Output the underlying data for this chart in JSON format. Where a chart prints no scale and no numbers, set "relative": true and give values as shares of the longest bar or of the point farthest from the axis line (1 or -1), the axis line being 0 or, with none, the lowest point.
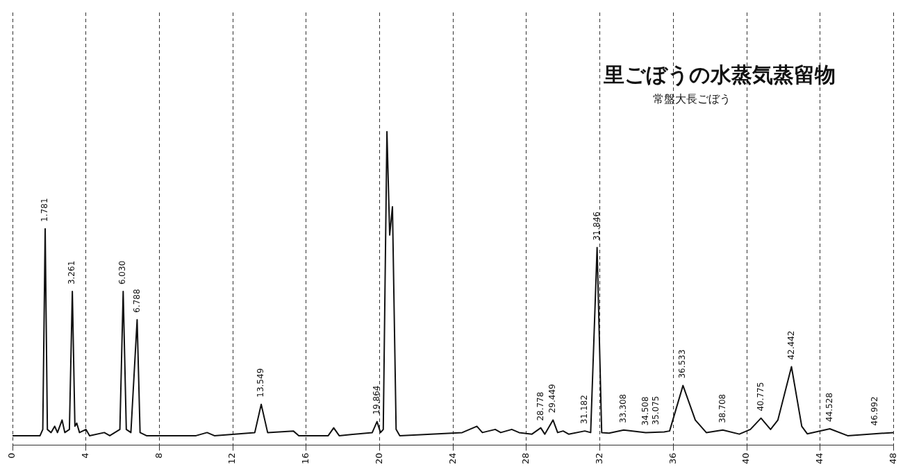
{
  "chart_data": {
    "type": "line",
    "title": "里ごぼうの水蒸気蒸留物",
    "subtitle": "常盤大長ごぼう",
    "relative": true,
    "grid": "x",
    "legend": false,
    "marker": "none",
    "line_style": "solid",
    "xlim": [
      0,
      48
    ],
    "xticks": [
      0,
      4,
      8,
      12,
      16,
      20,
      24,
      28,
      32,
      36,
      40,
      44,
      48
    ],
    "series": [
      {
        "color": "#111111",
        "x": [
          0,
          1.5,
          1.65,
          1.78,
          1.9,
          2.1,
          2.3,
          2.45,
          2.7,
          2.85,
          3.1,
          3.26,
          3.4,
          3.5,
          3.65,
          4.0,
          4.2,
          5.0,
          5.3,
          5.85,
          6.03,
          6.2,
          6.45,
          6.79,
          6.95,
          7.3,
          10,
          10.6,
          11,
          13.2,
          13.55,
          13.9,
          15.3,
          15.6,
          17.2,
          17.5,
          17.8,
          19.6,
          19.86,
          20.05,
          20.2,
          20.4,
          20.55,
          20.7,
          20.9,
          21.1,
          24.5,
          25.3,
          25.6,
          26.3,
          26.6,
          27.2,
          27.6,
          28.3,
          28.78,
          29.0,
          29.45,
          29.7,
          30.0,
          30.3,
          31.18,
          31.5,
          31.85,
          32.1,
          32.5,
          33.3,
          34.5,
          35.5,
          35.8,
          36.53,
          37.2,
          37.8,
          38.7,
          39.6,
          40.2,
          40.78,
          41.3,
          41.7,
          42.44,
          43.0,
          43.3,
          44.53,
          45.5,
          48
        ],
        "values": [
          0.03,
          0.03,
          0.05,
          0.69,
          0.05,
          0.04,
          0.06,
          0.04,
          0.08,
          0.04,
          0.05,
          0.49,
          0.06,
          0.07,
          0.04,
          0.05,
          0.03,
          0.04,
          0.03,
          0.05,
          0.49,
          0.05,
          0.04,
          0.4,
          0.04,
          0.03,
          0.03,
          0.04,
          0.03,
          0.04,
          0.13,
          0.04,
          0.045,
          0.03,
          0.03,
          0.055,
          0.03,
          0.04,
          0.075,
          0.04,
          0.05,
          1.0,
          0.67,
          0.76,
          0.05,
          0.03,
          0.04,
          0.06,
          0.04,
          0.05,
          0.04,
          0.05,
          0.04,
          0.035,
          0.055,
          0.035,
          0.08,
          0.04,
          0.045,
          0.035,
          0.045,
          0.04,
          0.63,
          0.04,
          0.038,
          0.048,
          0.04,
          0.042,
          0.045,
          0.19,
          0.08,
          0.04,
          0.048,
          0.035,
          0.05,
          0.086,
          0.05,
          0.08,
          0.25,
          0.06,
          0.036,
          0.052,
          0.03,
          0.04
        ]
      }
    ],
    "annotations": [
      {
        "text": "1.781",
        "x": 1.78,
        "y": 0.69
      },
      {
        "text": "3.261",
        "x": 3.26,
        "y": 0.49
      },
      {
        "text": "6.030",
        "x": 6.03,
        "y": 0.49
      },
      {
        "text": "6.788",
        "x": 6.79,
        "y": 0.4
      },
      {
        "text": "13.549",
        "x": 13.55,
        "y": 0.13
      },
      {
        "text": "19.864",
        "x": 19.86,
        "y": 0.075
      },
      {
        "text": "28.778",
        "x": 28.78,
        "y": 0.055
      },
      {
        "text": "29.449",
        "x": 29.45,
        "y": 0.08
      },
      {
        "text": "31.182",
        "x": 31.18,
        "y": 0.045
      },
      {
        "text": "31.846",
        "x": 31.85,
        "y": 0.63
      },
      {
        "text": "33.308",
        "x": 33.3,
        "y": 0.048
      },
      {
        "text": "34.508",
        "x": 34.5,
        "y": 0.04
      },
      {
        "text": "35.075",
        "x": 35.075,
        "y": 0.042
      },
      {
        "text": "36.533",
        "x": 36.53,
        "y": 0.19
      },
      {
        "text": "38.708",
        "x": 38.7,
        "y": 0.048
      },
      {
        "text": "40.775",
        "x": 40.78,
        "y": 0.086
      },
      {
        "text": "42.442",
        "x": 42.44,
        "y": 0.25
      },
      {
        "text": "44.528",
        "x": 44.53,
        "y": 0.052
      },
      {
        "text": "46.992",
        "x": 47.0,
        "y": 0.04
      }
    ]
  }
}
